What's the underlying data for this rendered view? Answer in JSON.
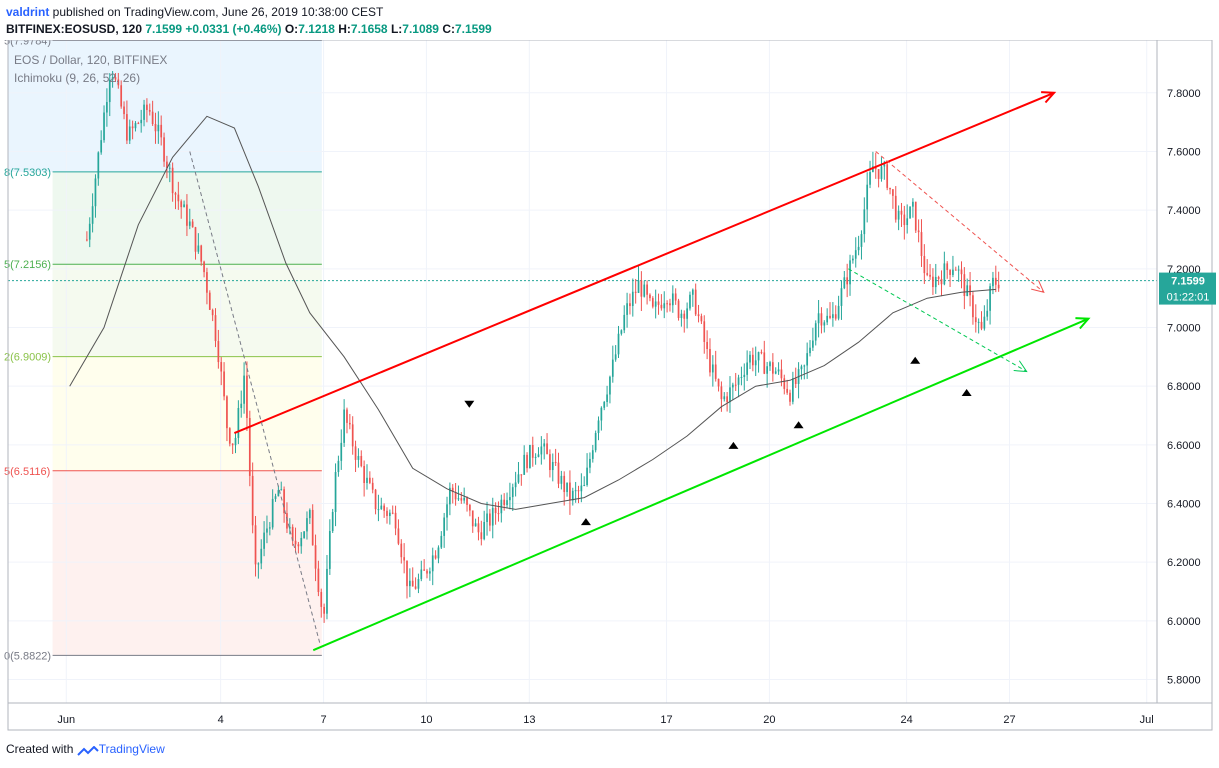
{
  "header": {
    "author": "valdrint",
    "published_text": " published on TradingView.com, June 26, 2019 10:38:00 CEST",
    "symbol_line": "BITFINEX:EOSUSD, 120",
    "last": "7.1599",
    "change": "+0.0331 (+0.46%)",
    "open_label": "O:",
    "open": "7.1218",
    "high_label": "H:",
    "high": "7.1658",
    "low_label": "L:",
    "low": "7.1089",
    "close_label": "C:",
    "close": "7.1599"
  },
  "legend": {
    "series": "EOS / Dollar, 120, BITFINEX",
    "indicator": "Ichimoku (9, 26, 52, 26)"
  },
  "price_badge": {
    "price": "7.1599",
    "countdown": "01:22:01"
  },
  "footer": {
    "created_with": "Created with",
    "brand": "TradingView"
  },
  "colors": {
    "up": "#26a69a",
    "down": "#ef5350",
    "channel_upper": "#ff0000",
    "channel_lower": "#00e600",
    "badge": "#26a69a",
    "ichimoku": "#555555"
  },
  "chart_data": {
    "type": "candlestick",
    "symbol": "BITFINEX:EOSUSD",
    "interval": "120",
    "ylim": [
      5.72,
      7.98
    ],
    "y_ticks": [
      "7.8000",
      "7.6000",
      "7.4000",
      "7.2000",
      "7.0000",
      "6.8000",
      "6.6000",
      "6.4000",
      "6.2000",
      "6.0000",
      "5.8000"
    ],
    "x_ticks": [
      "Jun",
      "4",
      "7",
      "10",
      "13",
      "17",
      "20",
      "24",
      "27",
      "Jul"
    ],
    "fibonacci": [
      {
        "label": "5(7.9784)",
        "price": 7.9784,
        "color": "#787b86"
      },
      {
        "label": "8(7.5303)",
        "price": 7.5303,
        "color": "#26a69a"
      },
      {
        "label": "5(7.2156)",
        "price": 7.2156,
        "color": "#4caf50"
      },
      {
        "label": "2(6.9009)",
        "price": 6.9009,
        "color": "#8bc34a"
      },
      {
        "label": "5(6.5116)",
        "price": 6.5116,
        "color": "#ef5350"
      },
      {
        "label": "0(5.8822)",
        "price": 5.8822,
        "color": "#787b86"
      }
    ],
    "anchors": [
      {
        "day": 0.0,
        "close": 7.3
      },
      {
        "day": 0.7,
        "close": 7.9
      },
      {
        "day": 1.2,
        "close": 7.65
      },
      {
        "day": 1.8,
        "close": 7.75
      },
      {
        "day": 2.2,
        "close": 7.62
      },
      {
        "day": 2.6,
        "close": 7.45
      },
      {
        "day": 3.0,
        "close": 7.35
      },
      {
        "day": 3.4,
        "close": 7.2
      },
      {
        "day": 3.8,
        "close": 6.95
      },
      {
        "day": 4.1,
        "close": 6.65
      },
      {
        "day": 4.3,
        "close": 6.6
      },
      {
        "day": 4.6,
        "close": 6.85
      },
      {
        "day": 4.9,
        "close": 6.15
      },
      {
        "day": 5.2,
        "close": 6.3
      },
      {
        "day": 5.6,
        "close": 6.45
      },
      {
        "day": 6.0,
        "close": 6.25
      },
      {
        "day": 6.5,
        "close": 6.35
      },
      {
        "day": 6.9,
        "close": 6.0
      },
      {
        "day": 7.2,
        "close": 6.45
      },
      {
        "day": 7.5,
        "close": 6.7
      },
      {
        "day": 7.9,
        "close": 6.55
      },
      {
        "day": 8.4,
        "close": 6.4
      },
      {
        "day": 9.0,
        "close": 6.35
      },
      {
        "day": 9.4,
        "close": 6.1
      },
      {
        "day": 9.8,
        "close": 6.15
      },
      {
        "day": 10.2,
        "close": 6.25
      },
      {
        "day": 10.6,
        "close": 6.45
      },
      {
        "day": 11.0,
        "close": 6.4
      },
      {
        "day": 11.4,
        "close": 6.3
      },
      {
        "day": 11.8,
        "close": 6.35
      },
      {
        "day": 12.3,
        "close": 6.45
      },
      {
        "day": 12.8,
        "close": 6.55
      },
      {
        "day": 13.2,
        "close": 6.6
      },
      {
        "day": 13.7,
        "close": 6.5
      },
      {
        "day": 14.1,
        "close": 6.42
      },
      {
        "day": 14.5,
        "close": 6.45
      },
      {
        "day": 14.9,
        "close": 6.7
      },
      {
        "day": 15.3,
        "close": 6.85
      },
      {
        "day": 15.7,
        "close": 7.05
      },
      {
        "day": 16.1,
        "close": 7.15
      },
      {
        "day": 16.5,
        "close": 7.05
      },
      {
        "day": 16.9,
        "close": 7.12
      },
      {
        "day": 17.3,
        "close": 7.05
      },
      {
        "day": 17.7,
        "close": 7.1
      },
      {
        "day": 18.1,
        "close": 6.9
      },
      {
        "day": 18.5,
        "close": 6.75
      },
      {
        "day": 18.9,
        "close": 6.8
      },
      {
        "day": 19.3,
        "close": 6.9
      },
      {
        "day": 19.7,
        "close": 6.88
      },
      {
        "day": 20.1,
        "close": 6.85
      },
      {
        "day": 20.5,
        "close": 6.78
      },
      {
        "day": 20.9,
        "close": 6.85
      },
      {
        "day": 21.3,
        "close": 7.05
      },
      {
        "day": 21.7,
        "close": 7.02
      },
      {
        "day": 22.1,
        "close": 7.15
      },
      {
        "day": 22.5,
        "close": 7.3
      },
      {
        "day": 22.9,
        "close": 7.55
      },
      {
        "day": 23.3,
        "close": 7.52
      },
      {
        "day": 23.7,
        "close": 7.35
      },
      {
        "day": 24.1,
        "close": 7.4
      },
      {
        "day": 24.5,
        "close": 7.15
      },
      {
        "day": 24.9,
        "close": 7.18
      },
      {
        "day": 25.3,
        "close": 7.22
      },
      {
        "day": 25.7,
        "close": 7.1
      },
      {
        "day": 26.1,
        "close": 6.98
      },
      {
        "day": 26.4,
        "close": 7.15
      },
      {
        "day": 26.6,
        "close": 7.1599
      }
    ],
    "ichimoku_line": [
      {
        "day": -0.5,
        "price": 6.8
      },
      {
        "day": 0.5,
        "price": 7.0
      },
      {
        "day": 1.5,
        "price": 7.35
      },
      {
        "day": 2.5,
        "price": 7.58
      },
      {
        "day": 3.5,
        "price": 7.72
      },
      {
        "day": 4.3,
        "price": 7.68
      },
      {
        "day": 5.0,
        "price": 7.48
      },
      {
        "day": 5.8,
        "price": 7.22
      },
      {
        "day": 6.5,
        "price": 7.05
      },
      {
        "day": 7.5,
        "price": 6.9
      },
      {
        "day": 8.5,
        "price": 6.72
      },
      {
        "day": 9.5,
        "price": 6.52
      },
      {
        "day": 10.5,
        "price": 6.45
      },
      {
        "day": 11.5,
        "price": 6.4
      },
      {
        "day": 12.5,
        "price": 6.38
      },
      {
        "day": 13.5,
        "price": 6.4
      },
      {
        "day": 14.5,
        "price": 6.42
      },
      {
        "day": 15.5,
        "price": 6.48
      },
      {
        "day": 16.5,
        "price": 6.55
      },
      {
        "day": 17.5,
        "price": 6.63
      },
      {
        "day": 18.5,
        "price": 6.73
      },
      {
        "day": 19.5,
        "price": 6.8
      },
      {
        "day": 20.5,
        "price": 6.82
      },
      {
        "day": 21.5,
        "price": 6.87
      },
      {
        "day": 22.5,
        "price": 6.95
      },
      {
        "day": 23.5,
        "price": 7.05
      },
      {
        "day": 24.5,
        "price": 7.1
      },
      {
        "day": 25.5,
        "price": 7.12
      },
      {
        "day": 26.5,
        "price": 7.13
      }
    ],
    "trendlines": {
      "upper": {
        "from": {
          "day": 4.3,
          "price": 6.64
        },
        "to": {
          "day": 28.2,
          "price": 7.8
        }
      },
      "lower": {
        "from": {
          "day": 6.6,
          "price": 5.9
        },
        "to": {
          "day": 29.2,
          "price": 7.03
        }
      },
      "dashed_red": {
        "from": {
          "day": 23.0,
          "price": 7.6
        },
        "to": {
          "day": 27.9,
          "price": 7.12
        }
      },
      "dashed_green": {
        "from": {
          "day": 22.2,
          "price": 7.2
        },
        "to": {
          "day": 27.4,
          "price": 6.85
        }
      },
      "dashed_gray": {
        "from": {
          "day": 3.0,
          "price": 7.6
        },
        "to": {
          "day": 6.8,
          "price": 5.92
        }
      }
    },
    "markers": [
      {
        "day": 11.15,
        "price": 6.74,
        "direction": "down"
      },
      {
        "day": 14.55,
        "price": 6.34,
        "direction": "up"
      },
      {
        "day": 18.85,
        "price": 6.6,
        "direction": "up"
      },
      {
        "day": 20.75,
        "price": 6.67,
        "direction": "up"
      },
      {
        "day": 24.15,
        "price": 6.89,
        "direction": "up"
      },
      {
        "day": 25.65,
        "price": 6.78,
        "direction": "up"
      }
    ],
    "current_price": 7.1599
  }
}
